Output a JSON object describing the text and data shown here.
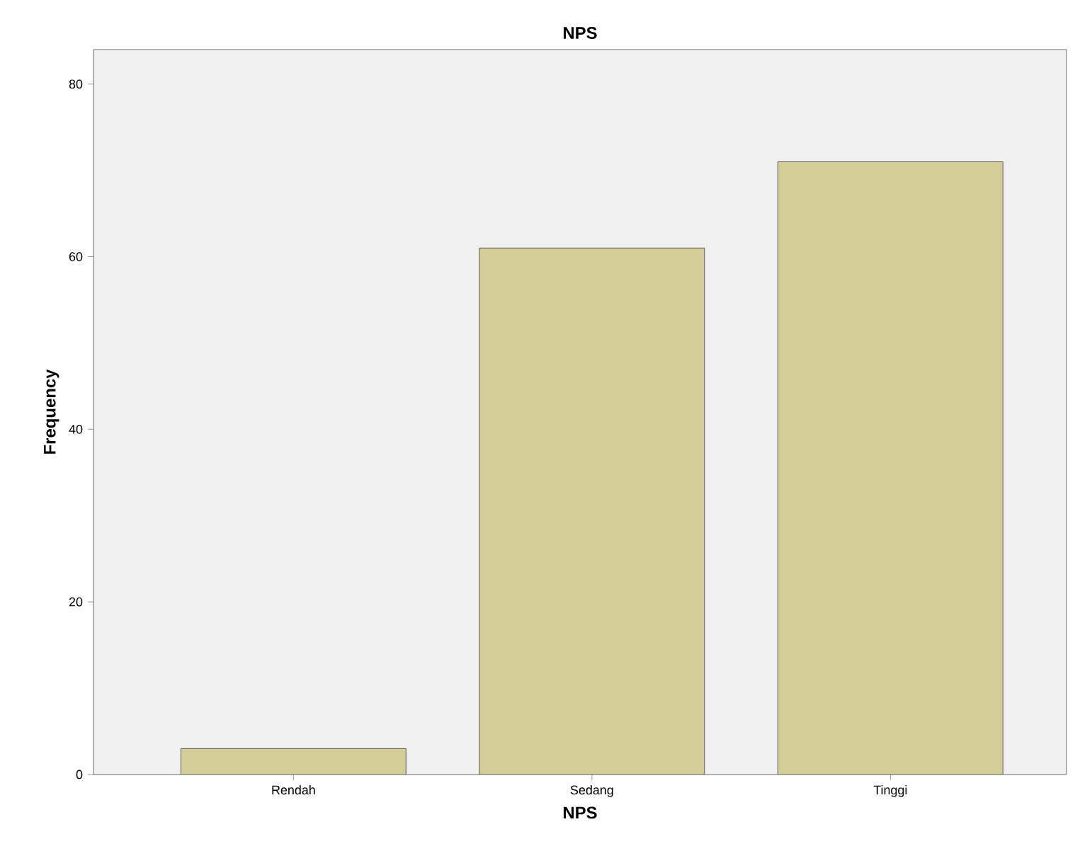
{
  "chart_data": {
    "type": "bar",
    "title": "NPS",
    "xlabel": "NPS",
    "ylabel": "Frequency",
    "categories": [
      "Rendah",
      "Sedang",
      "Tinggi"
    ],
    "values": [
      3,
      61,
      71
    ],
    "color": "#d3ce97",
    "ylim": [
      0,
      84
    ],
    "yticks": [
      0,
      20,
      40,
      60,
      80
    ],
    "grid": false
  }
}
